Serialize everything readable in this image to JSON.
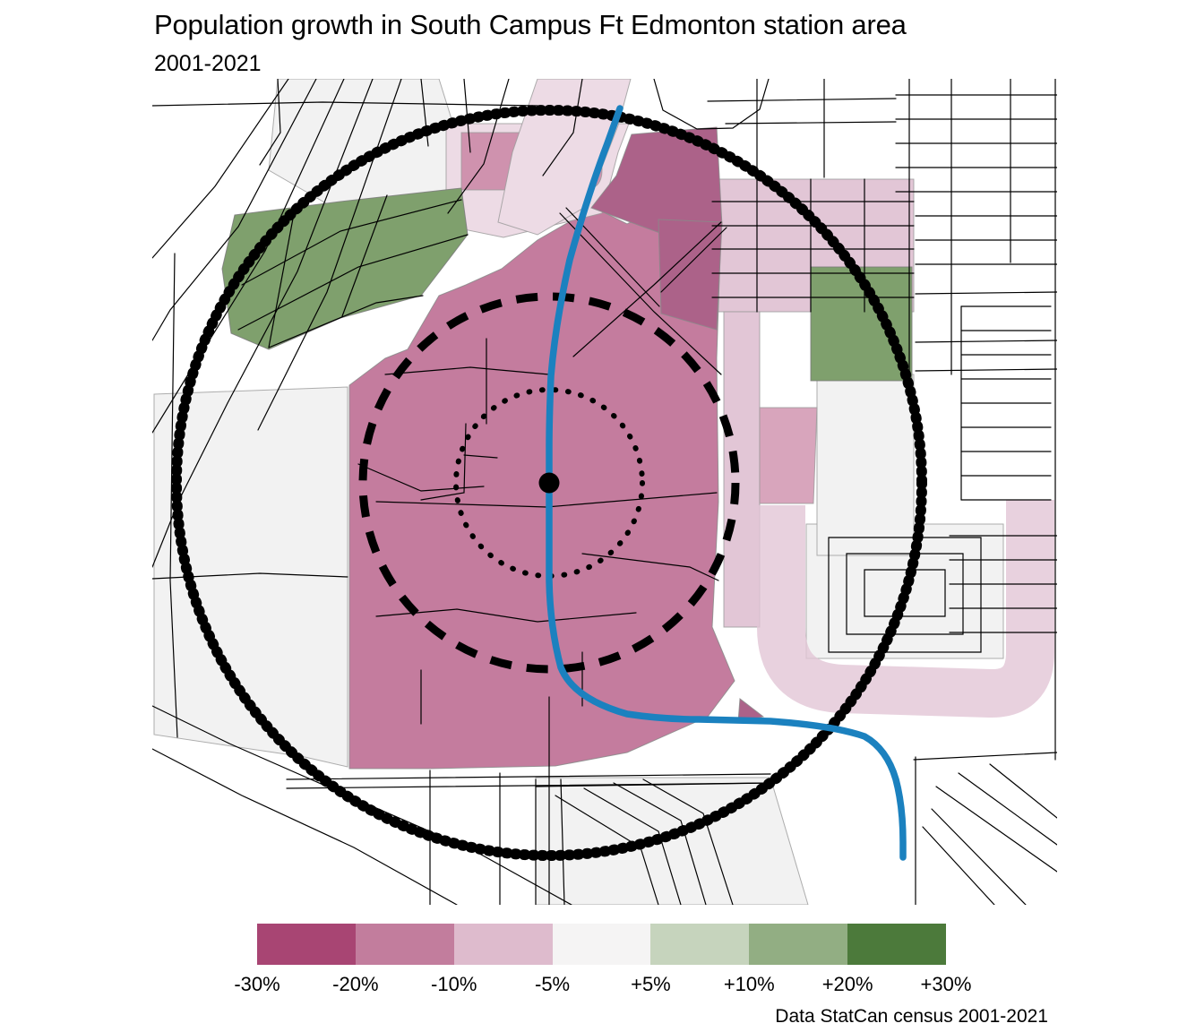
{
  "title": "Population growth in South Campus Ft Edmonton station area",
  "subtitle": "2001-2021",
  "caption": "Data StatCan census 2001-2021",
  "legend": {
    "swatch_colors": [
      "#A84573",
      "#C27D9D",
      "#DEBBCD",
      "#F5F4F4",
      "#C6D4BD",
      "#92AE83",
      "#4C7A3B"
    ],
    "break_labels": [
      "-30%",
      "-20%",
      "-10%",
      "-5%",
      "+5%",
      "+10%",
      "+20%",
      "+30%"
    ]
  },
  "map": {
    "palette": {
      "main_pink": "#C47C9E",
      "dark_pink": "#AC6289",
      "mid_pink": "#CF92AE",
      "rosy_pink": "#D8A5BC",
      "light_pink": "#E2C6D6",
      "pale_pink": "#EDDBE5",
      "off_white": "#F2F2F2",
      "green": "#7FA06D",
      "lrt_blue": "#1B81BF",
      "ring_black": "#000000",
      "street_black": "#000000",
      "border_gray": "#8C8C8C"
    },
    "rings": [
      {
        "style": "dotted"
      },
      {
        "style": "dashed"
      },
      {
        "style": "solid"
      }
    ],
    "station_marker": "filled-circle",
    "lrt_line": "blue-line"
  }
}
